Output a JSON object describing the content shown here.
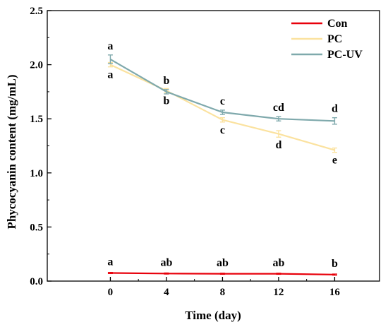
{
  "chart_data": {
    "type": "line",
    "xlabel": "Time (day)",
    "ylabel": "Phycocyanin content (mg/mL)",
    "x": [
      0,
      4,
      8,
      12,
      16
    ],
    "xlim": [
      -4.5,
      19.2
    ],
    "ylim": [
      0.0,
      2.5
    ],
    "x_ticks": [
      "0",
      "4",
      "8",
      "12",
      "16"
    ],
    "y_ticks": [
      "0.0",
      "0.5",
      "1.0",
      "1.5",
      "2.0",
      "2.5"
    ],
    "grid": false,
    "legend_position": "top-right",
    "series": [
      {
        "name": "Con",
        "color": "#e8000b",
        "values": [
          0.075,
          0.07,
          0.068,
          0.068,
          0.06
        ],
        "errors": [
          0.005,
          0.005,
          0.005,
          0.005,
          0.005
        ],
        "letters": [
          "a",
          "ab",
          "ab",
          "ab",
          "b"
        ]
      },
      {
        "name": "PC",
        "color": "#fbe29f",
        "values": [
          2.0,
          1.76,
          1.49,
          1.36,
          1.21
        ],
        "errors": [
          0.02,
          0.02,
          0.02,
          0.03,
          0.02
        ],
        "letters": [
          "a",
          "b",
          "c",
          "d",
          "e"
        ]
      },
      {
        "name": "PC-UV",
        "color": "#7fa9ac",
        "values": [
          2.05,
          1.75,
          1.56,
          1.5,
          1.48
        ],
        "errors": [
          0.04,
          0.02,
          0.02,
          0.02,
          0.03
        ],
        "letters": [
          "a",
          "b",
          "c",
          "cd",
          "d"
        ]
      }
    ]
  }
}
